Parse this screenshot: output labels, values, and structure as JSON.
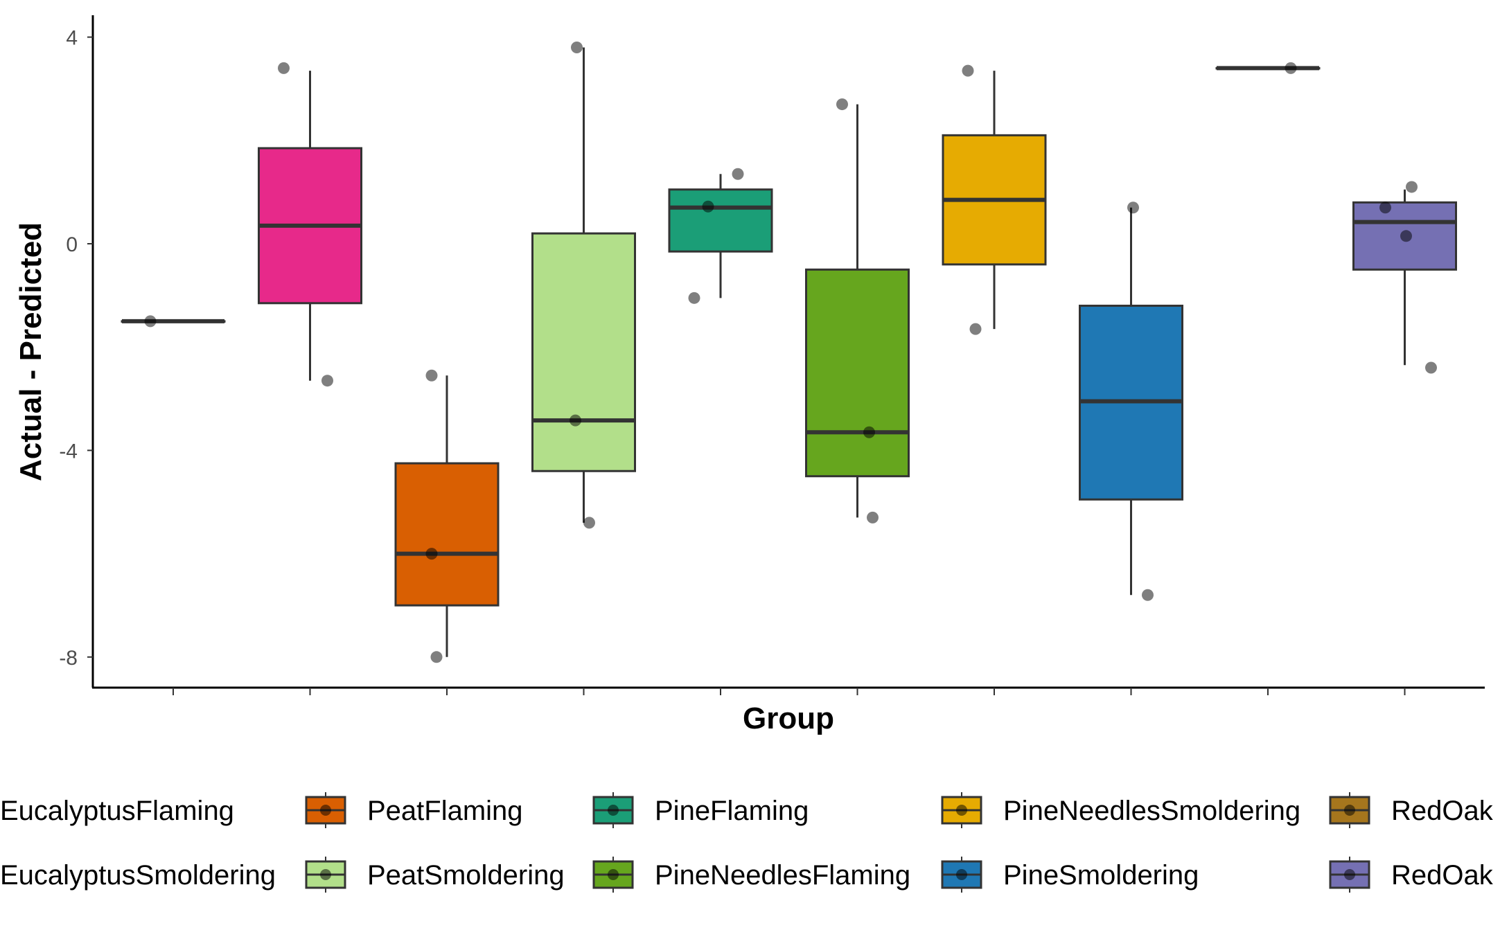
{
  "chart_data": {
    "type": "box",
    "title": "",
    "xlabel": "Group",
    "ylabel": "Actual - Predicted",
    "ylim": [
      -8.6,
      4.4
    ],
    "yticks": [
      4,
      0,
      -4,
      -8
    ],
    "grid": false,
    "legend_position": "bottom",
    "groups": [
      {
        "name": "EucalyptusFlaming",
        "color": "#D95F02",
        "box": {
          "q1": -1.5,
          "median": -1.5,
          "q3": -1.5,
          "whisker_low": -1.5,
          "whisker_high": -1.5
        },
        "points": [
          -1.5
        ]
      },
      {
        "name": "EucalyptusSmoldering",
        "color": "#E7298A",
        "box": {
          "q1": -1.15,
          "median": 0.35,
          "q3": 1.85,
          "whisker_low": -2.65,
          "whisker_high": 3.35
        },
        "points": [
          3.4,
          -2.65
        ]
      },
      {
        "name": "PeatFlaming",
        "color": "#D95F02",
        "box": {
          "q1": -7.0,
          "median": -6.0,
          "q3": -4.25,
          "whisker_low": -8.0,
          "whisker_high": -2.55
        },
        "points": [
          -2.55,
          -6.0,
          -8.0
        ]
      },
      {
        "name": "PeatSmoldering",
        "color": "#B2DF8A",
        "box": {
          "q1": -4.4,
          "median": -3.42,
          "q3": 0.2,
          "whisker_low": -5.4,
          "whisker_high": 3.8
        },
        "points": [
          3.8,
          -3.42,
          -5.4
        ]
      },
      {
        "name": "PineFlaming",
        "color": "#1B9E77",
        "box": {
          "q1": -0.15,
          "median": 0.7,
          "q3": 1.05,
          "whisker_low": -1.05,
          "whisker_high": 1.35
        },
        "points": [
          1.35,
          0.72,
          -1.05
        ]
      },
      {
        "name": "PineNeedlesFlaming",
        "color": "#66A61E",
        "box": {
          "q1": -4.5,
          "median": -3.65,
          "q3": -0.5,
          "whisker_low": -5.3,
          "whisker_high": 2.7
        },
        "points": [
          2.7,
          -3.65,
          -5.3
        ]
      },
      {
        "name": "PineNeedlesSmoldering",
        "color": "#E6AB02",
        "box": {
          "q1": -0.4,
          "median": 0.85,
          "q3": 2.1,
          "whisker_low": -1.65,
          "whisker_high": 3.35
        },
        "points": [
          3.35,
          -1.65
        ]
      },
      {
        "name": "PineSmoldering",
        "color": "#1F78B4",
        "box": {
          "q1": -4.95,
          "median": -3.05,
          "q3": -1.2,
          "whisker_low": -6.8,
          "whisker_high": 0.7
        },
        "points": [
          0.7,
          -6.8
        ]
      },
      {
        "name": "RedOak",
        "color": "#A6761D",
        "box": {
          "q1": 3.4,
          "median": 3.4,
          "q3": 3.4,
          "whisker_low": 3.4,
          "whisker_high": 3.4
        },
        "points": [
          3.4
        ]
      },
      {
        "name": "RedOak",
        "color": "#7570B3",
        "box": {
          "q1": -0.5,
          "median": 0.42,
          "q3": 0.8,
          "whisker_low": -2.35,
          "whisker_high": 1.05
        },
        "points": [
          1.1,
          0.7,
          0.15,
          -2.4
        ]
      }
    ],
    "legend": [
      {
        "label": "EucalyptusFlaming",
        "color": "#D95F02"
      },
      {
        "label": "EucalyptusSmoldering",
        "color": "#E7298A"
      },
      {
        "label": "PeatFlaming",
        "color": "#D95F02"
      },
      {
        "label": "PeatSmoldering",
        "color": "#B2DF8A"
      },
      {
        "label": "PineFlaming",
        "color": "#1B9E77"
      },
      {
        "label": "PineNeedlesFlaming",
        "color": "#66A61E"
      },
      {
        "label": "PineNeedlesSmoldering",
        "color": "#E6AB02"
      },
      {
        "label": "PineSmoldering",
        "color": "#1F78B4"
      },
      {
        "label": "RedOak",
        "color": "#A6761D"
      },
      {
        "label": "RedOak",
        "color": "#7570B3"
      }
    ]
  }
}
